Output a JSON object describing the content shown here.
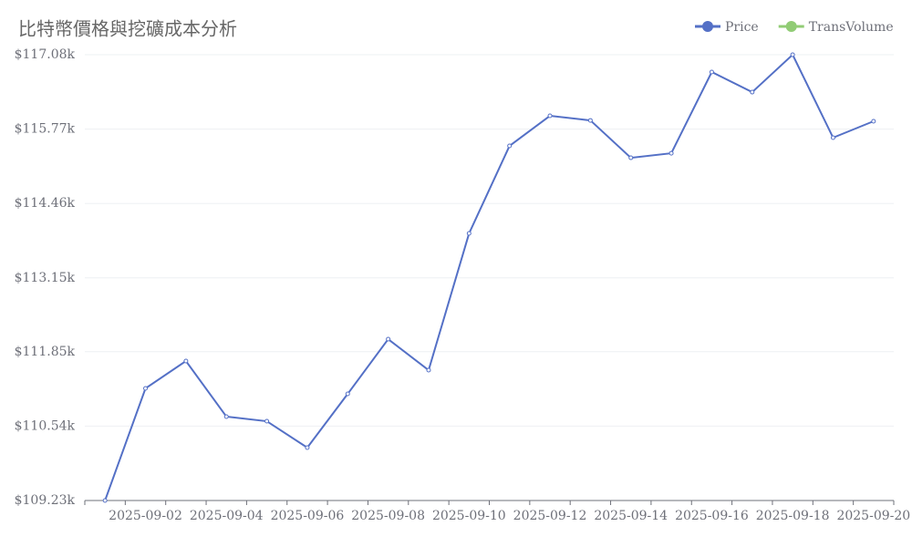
{
  "chart_data": {
    "type": "line",
    "title": "比特幣價格與挖礦成本分析",
    "categories": [
      null,
      "2025-09-02",
      null,
      "2025-09-04",
      null,
      "2025-09-06",
      null,
      "2025-09-08",
      null,
      "2025-09-10",
      null,
      "2025-09-12",
      null,
      "2025-09-14",
      null,
      "2025-09-16",
      null,
      "2025-09-18",
      null,
      "2025-09-20"
    ],
    "series": [
      {
        "name": "Price",
        "color": "#5470c6",
        "values": [
          109230,
          111204,
          111686,
          110707,
          110626,
          110161,
          111108,
          112071,
          111525,
          113933,
          115474,
          116004,
          115923,
          115265,
          115345,
          116775,
          116421,
          117080,
          115619,
          115908
        ]
      },
      {
        "name": "TransVolume",
        "color": "#91cc75"
      }
    ],
    "ylim": [
      109230,
      117080
    ],
    "yticks": [
      {
        "value": 109230,
        "label": "$109.23k"
      },
      {
        "value": 110540,
        "label": "$110.54k"
      },
      {
        "value": 111850,
        "label": "$111.85k"
      },
      {
        "value": 113150,
        "label": "$113.15k"
      },
      {
        "value": 114460,
        "label": "$114.46k"
      },
      {
        "value": 115770,
        "label": "$115.77k"
      },
      {
        "value": 117080,
        "label": "$117.08k"
      }
    ],
    "grid": true,
    "legend": "top-right"
  }
}
